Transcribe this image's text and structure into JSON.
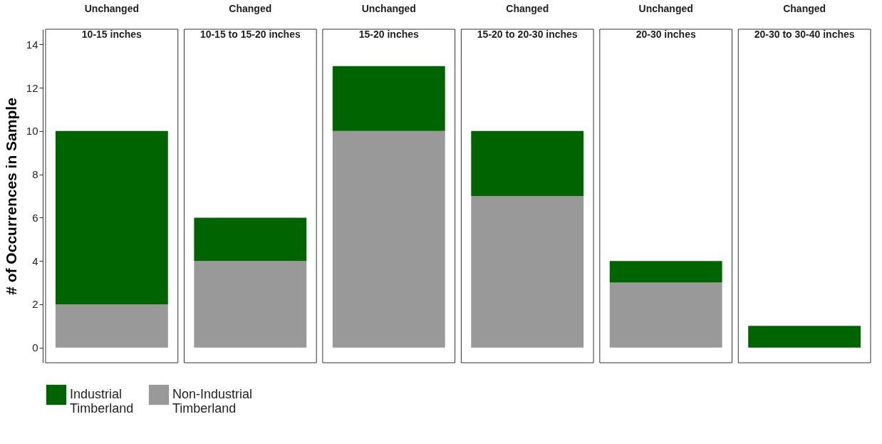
{
  "chart_data": {
    "type": "bar",
    "ylabel": "# of Occurrences in Sample",
    "categories": [
      "Unchanged 10-15 inches",
      "Changed 10-15 to 15-20 inches",
      "Unchanged 15-20 inches",
      "Changed 15-20 to 20-30 inches",
      "Unchanged 20-30 inches",
      "Changed 20-30 to 30-40 inches"
    ],
    "stacked": true,
    "ylim": [
      -0.7,
      14.7
    ],
    "yticks": [
      0,
      2,
      4,
      6,
      8,
      10,
      12,
      14
    ],
    "legend": "bottom",
    "series": [
      {
        "name": "Non-Industrial Timberland",
        "color": "#999999",
        "values": [
          2,
          4,
          10,
          7,
          3,
          0
        ]
      },
      {
        "name": "Industrial Timberland",
        "color": "#006400",
        "values": [
          8,
          2,
          3,
          3,
          1,
          1
        ]
      }
    ]
  }
}
